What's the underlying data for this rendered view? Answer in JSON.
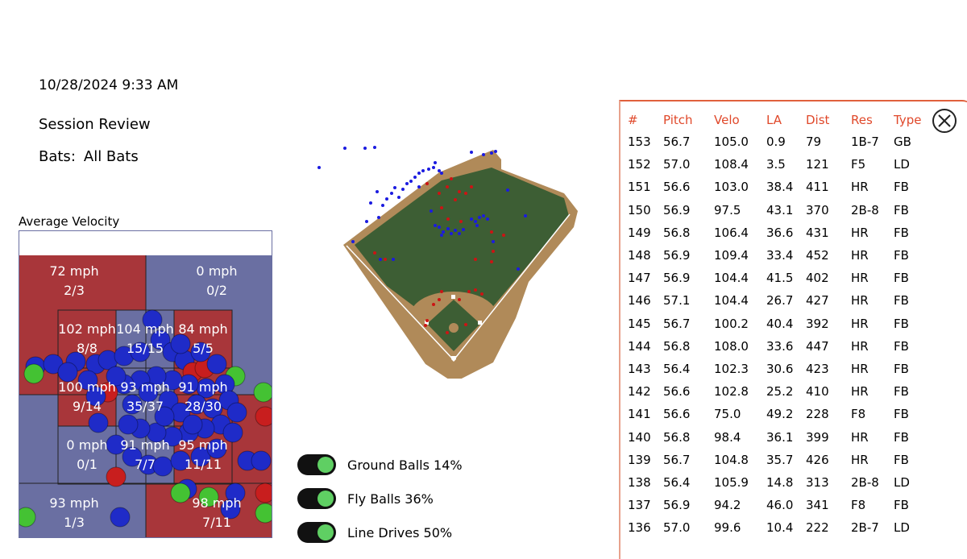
{
  "header": {
    "datetime": "10/28/2024 9:33 AM",
    "title": "Session Review",
    "bats_label": "Bats:",
    "bats_value": "All Bats"
  },
  "zone": {
    "title": "Average Velocity",
    "cells": [
      {
        "velo": "72 mph",
        "count": "2/3"
      },
      {
        "velo": "0 mph",
        "count": "0/2"
      },
      {
        "velo": "102 mph",
        "count": "8/8"
      },
      {
        "velo": "104 mph",
        "count": "15/15"
      },
      {
        "velo": "84 mph",
        "count": "5/5"
      },
      {
        "velo": "100 mph",
        "count": "9/14"
      },
      {
        "velo": "93 mph",
        "count": "35/37"
      },
      {
        "velo": "91 mph",
        "count": "28/30"
      },
      {
        "velo": "0 mph",
        "count": "0/1"
      },
      {
        "velo": "91 mph",
        "count": "7/7"
      },
      {
        "velo": "95 mph",
        "count": "11/11"
      },
      {
        "velo": "93 mph",
        "count": "1/3"
      },
      {
        "velo": "98 mph",
        "count": "7/11"
      }
    ],
    "colors": {
      "hot": "#a8363a",
      "cold": "#6a6fa2",
      "ball_blue": "#1f2bc8",
      "ball_red": "#c81e1e",
      "ball_green": "#44c233"
    }
  },
  "legend": [
    {
      "label": "Ground Balls 14%",
      "on": true
    },
    {
      "label": "Fly Balls 36%",
      "on": true
    },
    {
      "label": "Line Drives 50%",
      "on": true
    }
  ],
  "field_colors": {
    "grass": "#3d5e34",
    "dirt": "#b08a59",
    "hit_blue": "#1b1be0",
    "hit_red": "#cc1414"
  },
  "table": {
    "columns": [
      "#",
      "Pitch",
      "Velo",
      "LA",
      "Dist",
      "Res",
      "Type"
    ],
    "rows": [
      [
        "153",
        "56.7",
        "105.0",
        "0.9",
        "79",
        "1B-7",
        "GB"
      ],
      [
        "152",
        "57.0",
        "108.4",
        "3.5",
        "121",
        "F5",
        "LD"
      ],
      [
        "151",
        "56.6",
        "103.0",
        "38.4",
        "411",
        "HR",
        "FB"
      ],
      [
        "150",
        "56.9",
        "97.5",
        "43.1",
        "370",
        "2B-8",
        "FB"
      ],
      [
        "149",
        "56.8",
        "106.4",
        "36.6",
        "431",
        "HR",
        "FB"
      ],
      [
        "148",
        "56.9",
        "109.4",
        "33.4",
        "452",
        "HR",
        "FB"
      ],
      [
        "147",
        "56.9",
        "104.4",
        "41.5",
        "402",
        "HR",
        "FB"
      ],
      [
        "146",
        "57.1",
        "104.4",
        "26.7",
        "427",
        "HR",
        "FB"
      ],
      [
        "145",
        "56.7",
        "100.2",
        "40.4",
        "392",
        "HR",
        "FB"
      ],
      [
        "144",
        "56.8",
        "108.0",
        "33.6",
        "447",
        "HR",
        "FB"
      ],
      [
        "143",
        "56.4",
        "102.3",
        "30.6",
        "423",
        "HR",
        "FB"
      ],
      [
        "142",
        "56.6",
        "102.8",
        "25.2",
        "410",
        "HR",
        "FB"
      ],
      [
        "141",
        "56.6",
        "75.0",
        "49.2",
        "228",
        "F8",
        "FB"
      ],
      [
        "140",
        "56.8",
        "98.4",
        "36.1",
        "399",
        "HR",
        "FB"
      ],
      [
        "139",
        "56.7",
        "104.8",
        "35.7",
        "426",
        "HR",
        "FB"
      ],
      [
        "138",
        "56.4",
        "105.9",
        "14.8",
        "313",
        "2B-8",
        "LD"
      ],
      [
        "137",
        "56.9",
        "94.2",
        "46.0",
        "341",
        "F8",
        "FB"
      ],
      [
        "136",
        "57.0",
        "99.6",
        "10.4",
        "222",
        "2B-7",
        "LD"
      ]
    ]
  },
  "close_icon": "close-circle-icon"
}
